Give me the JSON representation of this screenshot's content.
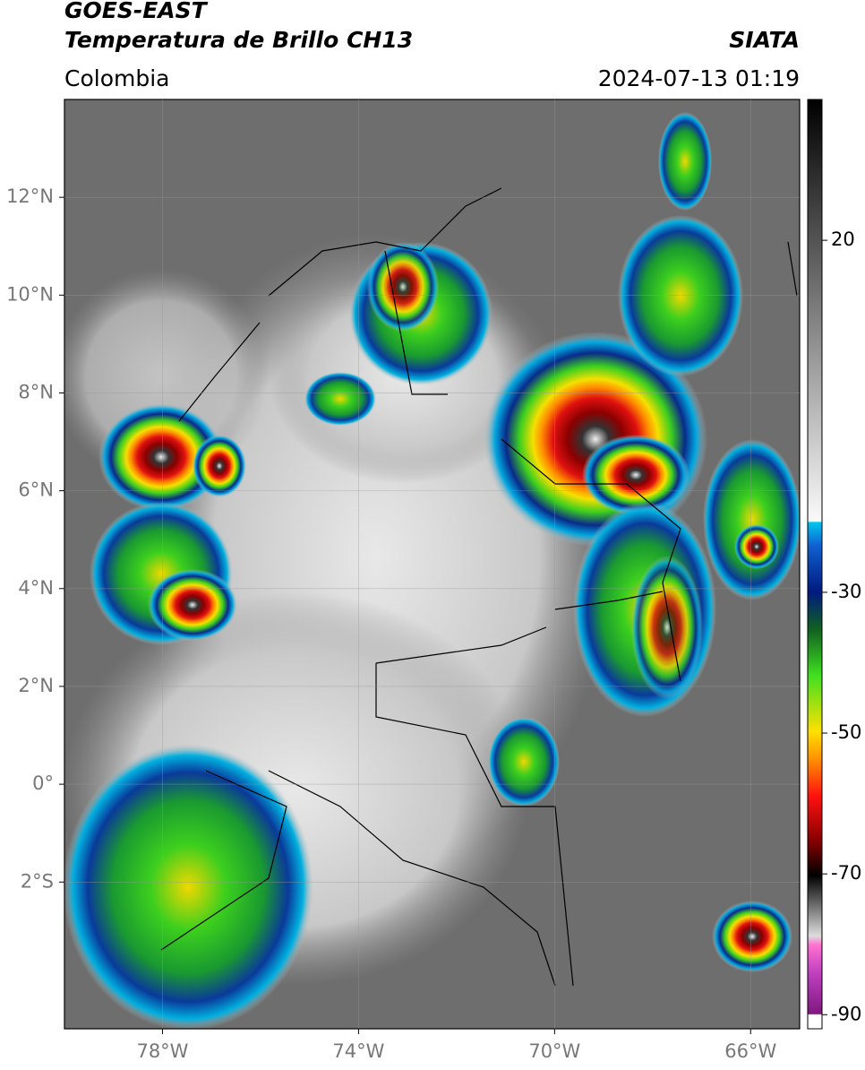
{
  "header": {
    "satellite": "GOES-EAST",
    "product": "Temperatura de Brillo CH13",
    "source": "SIATA",
    "region": "Colombia",
    "datetime": "2024-07-13 01:19"
  },
  "map": {
    "xlim": [
      -80,
      -65
    ],
    "ylim": [
      -5,
      14
    ],
    "xticks": [
      {
        "value": -78,
        "label": "78°W"
      },
      {
        "value": -74,
        "label": "74°W"
      },
      {
        "value": -70,
        "label": "70°W"
      },
      {
        "value": -66,
        "label": "66°W"
      }
    ],
    "yticks": [
      {
        "value": 12,
        "label": "12°N"
      },
      {
        "value": 10,
        "label": "10°N"
      },
      {
        "value": 8,
        "label": "8°N"
      },
      {
        "value": 6,
        "label": "6°N"
      },
      {
        "value": 4,
        "label": "4°N"
      },
      {
        "value": 2,
        "label": "2°N"
      },
      {
        "value": 0,
        "label": "0°"
      },
      {
        "value": -2,
        "label": "2°S"
      }
    ],
    "grid": true
  },
  "colorbar": {
    "lim": [
      -92,
      40
    ],
    "ticks": [
      20,
      -30,
      -50,
      -70,
      -90
    ]
  }
}
